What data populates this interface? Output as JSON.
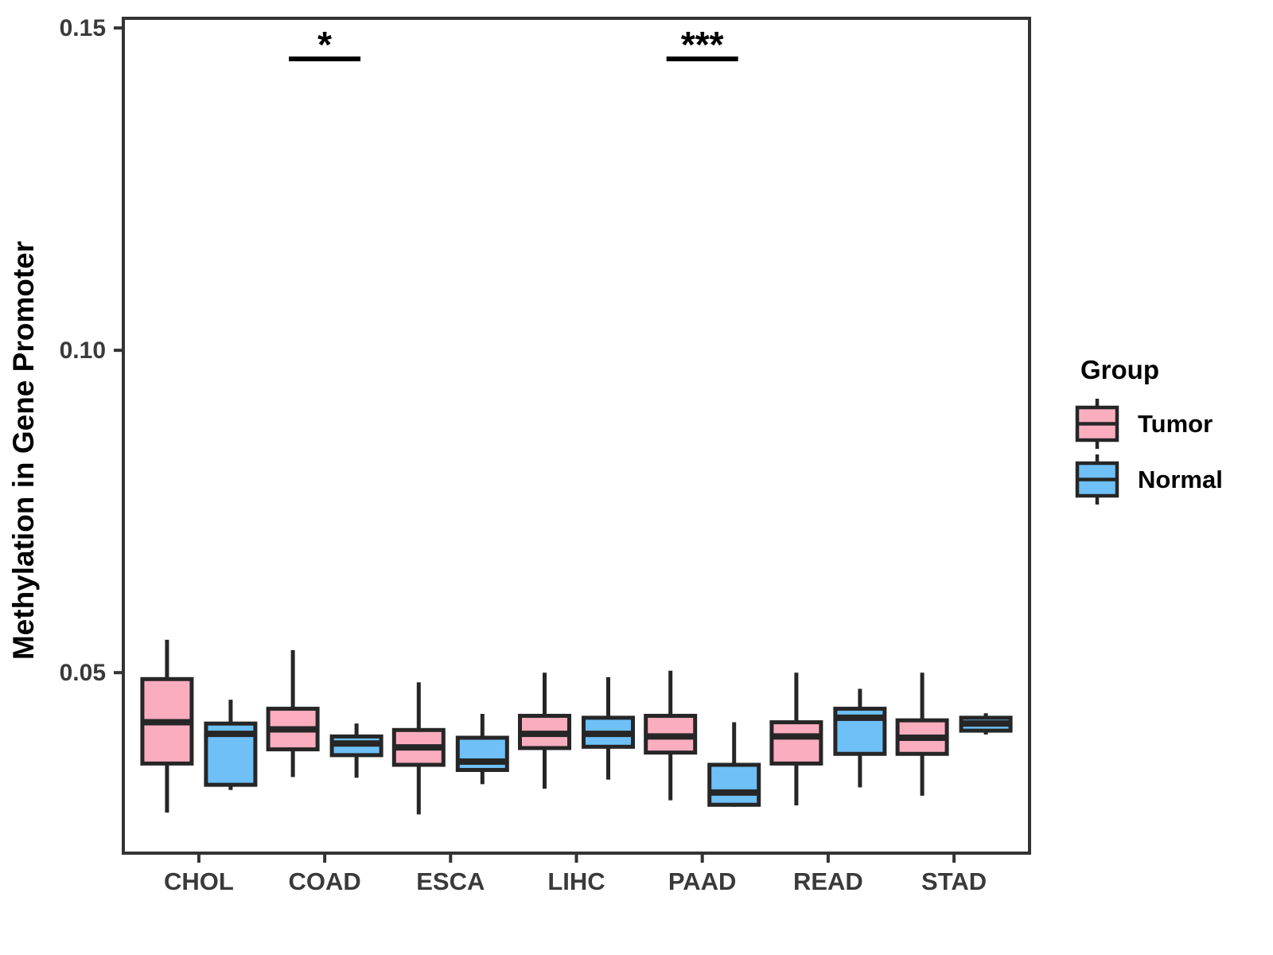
{
  "y_axis": {
    "title": "Methylation in Gene Promoter"
  },
  "legend": {
    "title": "Group",
    "entries": [
      {
        "label": "Tumor",
        "color": "#FBADC0"
      },
      {
        "label": "Normal",
        "color": "#6EC0F7"
      }
    ]
  },
  "chart_data": {
    "type": "boxplot",
    "title": "",
    "xlabel": "",
    "ylabel": "Methylation in Gene Promoter",
    "categories": [
      "CHOL",
      "COAD",
      "ESCA",
      "LIHC",
      "PAAD",
      "READ",
      "STAD"
    ],
    "ylim": [
      0.022,
      0.1515
    ],
    "yticks": [
      0.05,
      0.1,
      0.15
    ],
    "ytick_labels": [
      "0.05",
      "0.10",
      "0.15"
    ],
    "grid": false,
    "legend_position": "right",
    "legend_title": "Group",
    "stroke_color": "#262626",
    "axis_color": "#333333",
    "tick_text_color": "#3a3a3a",
    "series": [
      {
        "name": "Tumor",
        "color": "#FBADC0",
        "boxes": [
          {
            "low": 0.0283,
            "q1": 0.0359,
            "median": 0.0423,
            "q3": 0.049,
            "high": 0.0551
          },
          {
            "low": 0.0338,
            "q1": 0.0381,
            "median": 0.0412,
            "q3": 0.0444,
            "high": 0.0535
          },
          {
            "low": 0.028,
            "q1": 0.0357,
            "median": 0.0384,
            "q3": 0.0411,
            "high": 0.0485
          },
          {
            "low": 0.032,
            "q1": 0.0383,
            "median": 0.0405,
            "q3": 0.0433,
            "high": 0.05
          },
          {
            "low": 0.0302,
            "q1": 0.0376,
            "median": 0.0401,
            "q3": 0.0433,
            "high": 0.0503
          },
          {
            "low": 0.0294,
            "q1": 0.0359,
            "median": 0.0401,
            "q3": 0.0423,
            "high": 0.05
          },
          {
            "low": 0.0309,
            "q1": 0.0374,
            "median": 0.0399,
            "q3": 0.0426,
            "high": 0.05
          }
        ]
      },
      {
        "name": "Normal",
        "color": "#6EC0F7",
        "boxes": [
          {
            "low": 0.0318,
            "q1": 0.0326,
            "median": 0.0405,
            "q3": 0.0421,
            "high": 0.0458
          },
          {
            "low": 0.0337,
            "q1": 0.0372,
            "median": 0.039,
            "q3": 0.0401,
            "high": 0.0421
          },
          {
            "low": 0.0327,
            "q1": 0.0349,
            "median": 0.0362,
            "q3": 0.0399,
            "high": 0.0436
          },
          {
            "low": 0.0334,
            "q1": 0.0385,
            "median": 0.0405,
            "q3": 0.043,
            "high": 0.0493
          },
          {
            "low": 0.0292,
            "q1": 0.0295,
            "median": 0.0314,
            "q3": 0.0357,
            "high": 0.0423
          },
          {
            "low": 0.0322,
            "q1": 0.0374,
            "median": 0.043,
            "q3": 0.0444,
            "high": 0.0475
          },
          {
            "low": 0.0404,
            "q1": 0.041,
            "median": 0.0421,
            "q3": 0.043,
            "high": 0.0437
          }
        ]
      }
    ],
    "annotations": [
      {
        "category": "COAD",
        "label": "*",
        "bar_y": 0.1452
      },
      {
        "category": "PAAD",
        "label": "***",
        "bar_y": 0.1452
      }
    ]
  }
}
